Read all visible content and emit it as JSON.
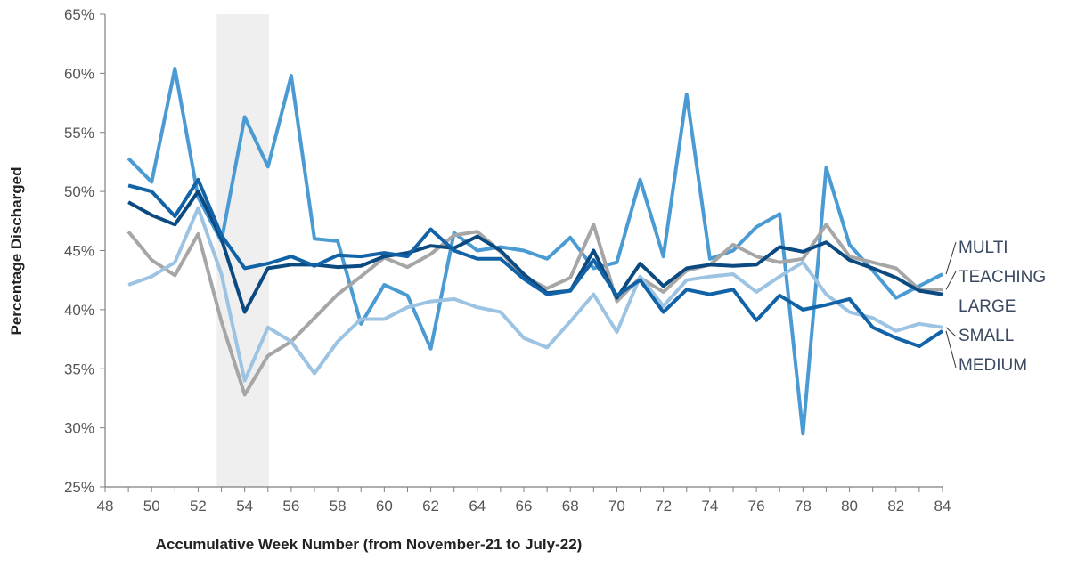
{
  "chart_data": {
    "type": "line",
    "title": "",
    "xlabel": "Accumulative Week Number (from November-21 to July-22)",
    "ylabel": "Percentage Discharged",
    "xlim": [
      48,
      84
    ],
    "ylim": [
      25,
      65
    ],
    "xticks": [
      48,
      50,
      52,
      54,
      56,
      58,
      60,
      62,
      64,
      66,
      68,
      70,
      72,
      74,
      76,
      78,
      80,
      82,
      84
    ],
    "yticks": [
      "25%",
      "30%",
      "35%",
      "40%",
      "45%",
      "50%",
      "55%",
      "60%",
      "65%"
    ],
    "yticks_values": [
      25,
      30,
      35,
      40,
      45,
      50,
      55,
      60,
      65
    ],
    "shaded_span": [
      52.8,
      55.05
    ],
    "legend_placement": "right (end labels)",
    "x": [
      49,
      50,
      51,
      52,
      53,
      54,
      55,
      56,
      57,
      58,
      59,
      60,
      61,
      62,
      63,
      64,
      65,
      66,
      67,
      68,
      69,
      70,
      71,
      72,
      73,
      74,
      75,
      76,
      77,
      78,
      79,
      80,
      81,
      82,
      83,
      84
    ],
    "series": [
      {
        "name": "MULTI",
        "color": "#4a9ad3",
        "values": [
          52.8,
          50.8,
          60.4,
          49.5,
          45.8,
          56.3,
          52.1,
          59.8,
          46.0,
          45.8,
          38.8,
          42.1,
          41.2,
          36.7,
          46.5,
          45.0,
          45.3,
          45.0,
          44.3,
          46.1,
          43.5,
          44.0,
          51.0,
          44.5,
          58.2,
          44.3,
          45.0,
          47.0,
          48.1,
          29.5,
          52.0,
          45.5,
          43.3,
          41.0,
          42.0,
          43.0
        ]
      },
      {
        "name": "TEACHING",
        "color": "#a6a6a6",
        "values": [
          46.6,
          44.2,
          42.9,
          46.4,
          39.0,
          32.8,
          36.1,
          37.3,
          39.3,
          41.3,
          42.8,
          44.4,
          43.6,
          44.7,
          46.3,
          46.6,
          44.9,
          42.8,
          41.8,
          42.7,
          47.2,
          40.7,
          42.7,
          41.5,
          43.3,
          43.8,
          45.5,
          44.5,
          44.0,
          44.3,
          47.2,
          44.5,
          44.0,
          43.5,
          41.7,
          41.7
        ]
      },
      {
        "name": "LARGE",
        "color": "#0b4a80",
        "values": [
          49.1,
          48.0,
          47.2,
          50.0,
          46.0,
          39.8,
          43.5,
          43.8,
          43.8,
          43.6,
          43.7,
          44.5,
          44.8,
          45.4,
          45.2,
          46.2,
          45.0,
          43.0,
          41.4,
          41.6,
          45.0,
          41.0,
          43.9,
          42.0,
          43.5,
          43.8,
          43.7,
          43.8,
          45.3,
          44.9,
          45.7,
          44.2,
          43.5,
          42.7,
          41.6,
          41.3
        ]
      },
      {
        "name": "SMALL",
        "color": "#9dc3e3",
        "values": [
          42.1,
          42.8,
          44.0,
          48.6,
          43.0,
          34.0,
          38.5,
          37.3,
          34.6,
          37.3,
          39.2,
          39.2,
          40.2,
          40.7,
          40.9,
          40.2,
          39.8,
          37.6,
          36.8,
          39.0,
          41.3,
          38.1,
          42.8,
          40.3,
          42.5,
          42.8,
          43.0,
          41.5,
          42.8,
          44.0,
          41.3,
          39.8,
          39.3,
          38.2,
          38.8,
          38.5
        ]
      },
      {
        "name": "MEDIUM",
        "color": "#1162a6",
        "values": [
          50.5,
          50.0,
          47.9,
          51.0,
          46.3,
          43.5,
          43.9,
          44.5,
          43.7,
          44.6,
          44.5,
          44.8,
          44.5,
          46.8,
          45.0,
          44.3,
          44.3,
          42.6,
          41.3,
          41.6,
          44.2,
          41.2,
          42.5,
          39.8,
          41.7,
          41.3,
          41.7,
          39.1,
          41.2,
          40.0,
          40.4,
          40.9,
          38.5,
          37.6,
          36.9,
          38.2
        ]
      }
    ]
  }
}
